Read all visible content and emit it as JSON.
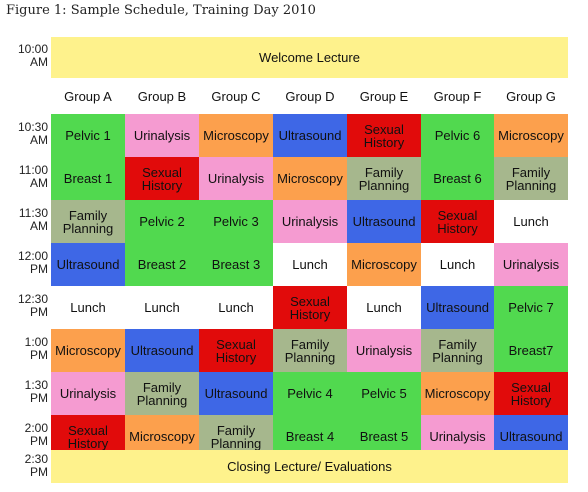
{
  "caption": "Figure 1: Sample Schedule, Training Day 2010",
  "times": [
    {
      "hour": "10:00",
      "ampm": "AM"
    },
    {
      "hour": "10:30",
      "ampm": "AM"
    },
    {
      "hour": "11:00",
      "ampm": "AM"
    },
    {
      "hour": "11:30",
      "ampm": "AM"
    },
    {
      "hour": "12:00",
      "ampm": "PM"
    },
    {
      "hour": "12:30",
      "ampm": "PM"
    },
    {
      "hour": "1:00",
      "ampm": "PM"
    },
    {
      "hour": "1:30",
      "ampm": "PM"
    },
    {
      "hour": "2:00",
      "ampm": "PM"
    },
    {
      "hour": "2:30",
      "ampm": "PM"
    }
  ],
  "welcome": "Welcome Lecture",
  "closing": "Closing Lecture/ Evaluations",
  "groups": [
    "Group A",
    "Group B",
    "Group C",
    "Group D",
    "Group E",
    "Group F",
    "Group G"
  ],
  "colors": {
    "banner": "#fef28c",
    "Pelvic": "#51d94f",
    "Breast": "#51d94f",
    "Urinalysis": "#f59bd1",
    "Microscopy": "#fca04d",
    "Ultrasound": "#3e67e6",
    "Sexual History": "#e10b0b",
    "Family Planning": "#a6b78d",
    "Lunch": "#ffffff"
  },
  "schedule": [
    [
      {
        "text": "Pelvic 1",
        "kind": "Pelvic"
      },
      {
        "text": "Urinalysis",
        "kind": "Urinalysis"
      },
      {
        "text": "Microscopy",
        "kind": "Microscopy"
      },
      {
        "text": "Ultrasound",
        "kind": "Ultrasound"
      },
      {
        "text": "Sexual\nHistory",
        "kind": "Sexual History"
      },
      {
        "text": "Pelvic 6",
        "kind": "Pelvic"
      },
      {
        "text": "Microscopy",
        "kind": "Microscopy"
      }
    ],
    [
      {
        "text": "Breast 1",
        "kind": "Breast"
      },
      {
        "text": "Sexual\nHistory",
        "kind": "Sexual History"
      },
      {
        "text": "Urinalysis",
        "kind": "Urinalysis"
      },
      {
        "text": "Microscopy",
        "kind": "Microscopy"
      },
      {
        "text": "Family\nPlanning",
        "kind": "Family Planning"
      },
      {
        "text": "Breast 6",
        "kind": "Breast"
      },
      {
        "text": "Family\nPlanning",
        "kind": "Family Planning"
      }
    ],
    [
      {
        "text": "Family\nPlanning",
        "kind": "Family Planning"
      },
      {
        "text": "Pelvic 2",
        "kind": "Pelvic"
      },
      {
        "text": "Pelvic 3",
        "kind": "Pelvic"
      },
      {
        "text": "Urinalysis",
        "kind": "Urinalysis"
      },
      {
        "text": "Ultrasound",
        "kind": "Ultrasound"
      },
      {
        "text": "Sexual\nHistory",
        "kind": "Sexual History"
      },
      {
        "text": "Lunch",
        "kind": "Lunch"
      }
    ],
    [
      {
        "text": "Ultrasound",
        "kind": "Ultrasound"
      },
      {
        "text": "Breast 2",
        "kind": "Breast"
      },
      {
        "text": "Breast 3",
        "kind": "Breast"
      },
      {
        "text": "Lunch",
        "kind": "Lunch"
      },
      {
        "text": "Microscopy",
        "kind": "Microscopy"
      },
      {
        "text": "Lunch",
        "kind": "Lunch"
      },
      {
        "text": "Urinalysis",
        "kind": "Urinalysis"
      }
    ],
    [
      {
        "text": "Lunch",
        "kind": "Lunch"
      },
      {
        "text": "Lunch",
        "kind": "Lunch"
      },
      {
        "text": "Lunch",
        "kind": "Lunch"
      },
      {
        "text": "Sexual\nHistory",
        "kind": "Sexual History"
      },
      {
        "text": "Lunch",
        "kind": "Lunch"
      },
      {
        "text": "Ultrasound",
        "kind": "Ultrasound"
      },
      {
        "text": "Pelvic 7",
        "kind": "Pelvic"
      }
    ],
    [
      {
        "text": "Microscopy",
        "kind": "Microscopy"
      },
      {
        "text": "Ultrasound",
        "kind": "Ultrasound"
      },
      {
        "text": "Sexual\nHistory",
        "kind": "Sexual History"
      },
      {
        "text": "Family\nPlanning",
        "kind": "Family Planning"
      },
      {
        "text": "Urinalysis",
        "kind": "Urinalysis"
      },
      {
        "text": "Family\nPlanning",
        "kind": "Family Planning"
      },
      {
        "text": "Breast7",
        "kind": "Breast"
      }
    ],
    [
      {
        "text": "Urinalysis",
        "kind": "Urinalysis"
      },
      {
        "text": "Family\nPlanning",
        "kind": "Family Planning"
      },
      {
        "text": "Ultrasound",
        "kind": "Ultrasound"
      },
      {
        "text": "Pelvic 4",
        "kind": "Pelvic"
      },
      {
        "text": "Pelvic 5",
        "kind": "Pelvic"
      },
      {
        "text": "Microscopy",
        "kind": "Microscopy"
      },
      {
        "text": "Sexual\nHistory",
        "kind": "Sexual History"
      }
    ],
    [
      {
        "text": "Sexual\nHistory",
        "kind": "Sexual History"
      },
      {
        "text": "Microscopy",
        "kind": "Microscopy"
      },
      {
        "text": "Family\nPlanning",
        "kind": "Family Planning"
      },
      {
        "text": "Breast 4",
        "kind": "Breast"
      },
      {
        "text": "Breast 5",
        "kind": "Breast"
      },
      {
        "text": "Urinalysis",
        "kind": "Urinalysis"
      },
      {
        "text": "Ultrasound",
        "kind": "Ultrasound"
      }
    ]
  ]
}
